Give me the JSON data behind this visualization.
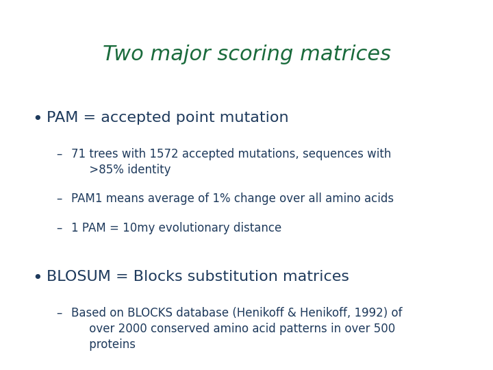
{
  "title": "Two major scoring matrices",
  "title_color": "#1a6b3c",
  "title_fontsize": 22,
  "background_color": "#ffffff",
  "bullet1": "PAM = accepted point mutation",
  "bullet1_color": "#1e3a5c",
  "bullet1_fontsize": 16,
  "sub1_lines": [
    "71 trees with 1572 accepted mutations, sequences with\n     >85% identity",
    "PAM1 means average of 1% change over all amino acids",
    "1 PAM = 10my evolutionary distance"
  ],
  "sub1_color": "#1e3a5c",
  "sub1_fontsize": 12,
  "bullet2": "BLOSUM = Blocks substitution matrices",
  "bullet2_color": "#1e3a5c",
  "bullet2_fontsize": 16,
  "sub2_lines": [
    "Based on BLOCKS database (Henikoff & Henikoff, 1992) of\n     over 2000 conserved amino acid patterns in over 500\n     proteins"
  ],
  "sub2_color": "#1e3a5c",
  "sub2_fontsize": 12,
  "dash": "– ",
  "bullet_char": "•"
}
